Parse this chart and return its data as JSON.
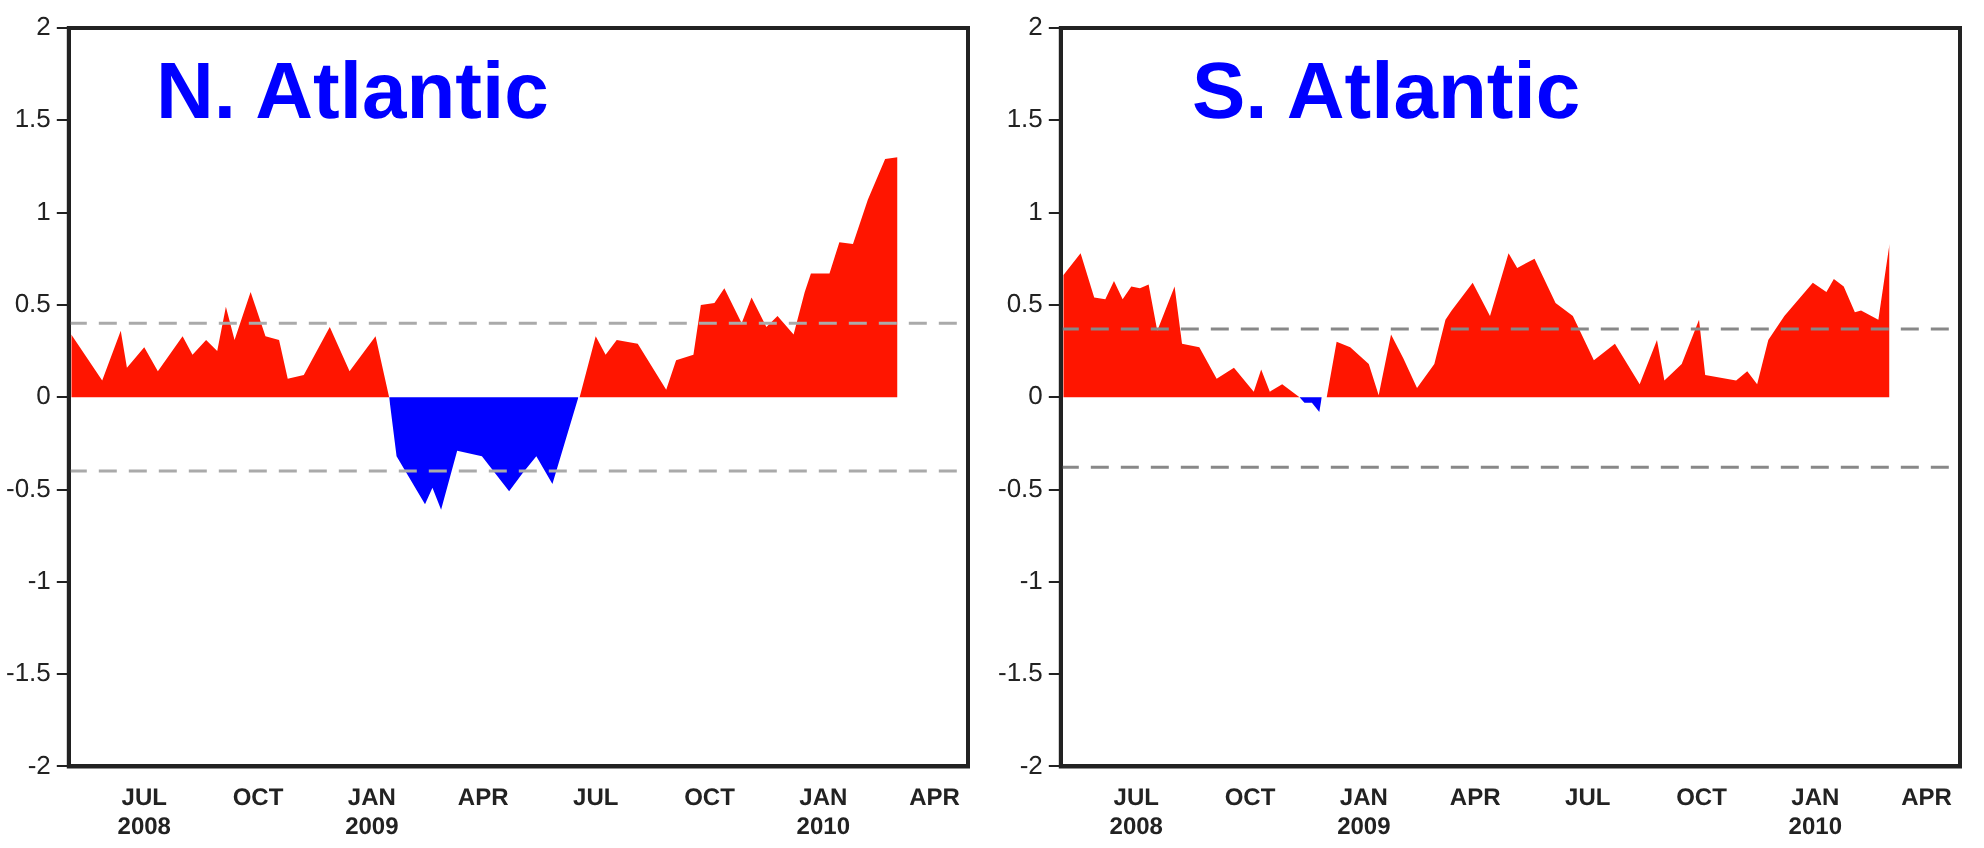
{
  "chart_data": [
    {
      "type": "area",
      "title": "N. Atlantic",
      "xlim": [
        "2008-05-01",
        "2010-04-28"
      ],
      "ylim": [
        -2,
        2
      ],
      "xticks": [
        {
          "value": "2008-07-01",
          "label": "JUL\n2008"
        },
        {
          "value": "2008-10-01",
          "label": "OCT"
        },
        {
          "value": "2009-01-01",
          "label": "JAN\n2009"
        },
        {
          "value": "2009-04-01",
          "label": "APR"
        },
        {
          "value": "2009-07-01",
          "label": "JUL"
        },
        {
          "value": "2009-10-01",
          "label": "OCT"
        },
        {
          "value": "2010-01-01",
          "label": "JAN\n2010"
        },
        {
          "value": "2010-04-01",
          "label": "APR"
        }
      ],
      "yticks": [
        -2,
        -1.5,
        -1,
        -0.5,
        0,
        0.5,
        1,
        1.5,
        2
      ],
      "series": [
        {
          "color": "#ff1500",
          "x": [
            "2008-05-03",
            "2008-05-28",
            "2008-06-12",
            "2008-06-17",
            "2008-07-01",
            "2008-07-12",
            "2008-08-01",
            "2008-08-09",
            "2008-08-20",
            "2008-08-29",
            "2008-09-05",
            "2008-09-12",
            "2008-09-25",
            "2008-10-07",
            "2008-10-18",
            "2008-10-25",
            "2008-11-07",
            "2008-11-28",
            "2008-12-14",
            "2009-01-04",
            "2009-01-15",
            "2009-06-18",
            "2009-07-01",
            "2009-07-09",
            "2009-07-18",
            "2009-08-04",
            "2009-08-27",
            "2009-09-04",
            "2009-09-18",
            "2009-09-24",
            "2009-10-05",
            "2009-10-13",
            "2009-10-27",
            "2009-11-04",
            "2009-11-16",
            "2009-11-25",
            "2009-12-08",
            "2009-12-17",
            "2009-12-22",
            "2010-01-06",
            "2010-01-14",
            "2010-01-25",
            "2010-02-06",
            "2010-02-20",
            "2010-03-02"
          ],
          "values": [
            0.34,
            0.09,
            0.36,
            0.16,
            0.27,
            0.14,
            0.33,
            0.23,
            0.31,
            0.25,
            0.49,
            0.31,
            0.57,
            0.33,
            0.31,
            0.1,
            0.12,
            0.38,
            0.14,
            0.33,
            0,
            0,
            0.33,
            0.23,
            0.31,
            0.29,
            0.04,
            0.2,
            0.23,
            0.5,
            0.51,
            0.59,
            0.4,
            0.54,
            0.38,
            0.44,
            0.34,
            0.57,
            0.67,
            0.67,
            0.84,
            0.83,
            1.07,
            1.29,
            1.3
          ]
        },
        {
          "color": "#0000ff",
          "x": [
            "2009-01-15",
            "2009-01-21",
            "2009-02-13",
            "2009-02-19",
            "2009-02-26",
            "2009-03-11",
            "2009-03-31",
            "2009-04-22",
            "2009-05-03",
            "2009-05-14",
            "2009-05-27",
            "2009-06-17"
          ],
          "values": [
            0,
            -0.32,
            -0.58,
            -0.49,
            -0.61,
            -0.29,
            -0.32,
            -0.51,
            -0.41,
            -0.32,
            -0.47,
            0
          ]
        }
      ],
      "ref_lines": [
        {
          "axis": "y",
          "value": 0.4,
          "color": "#aaaaaa",
          "line_style": "dashed"
        },
        {
          "axis": "y",
          "value": -0.4,
          "color": "#aaaaaa",
          "line_style": "dashed"
        }
      ],
      "grid": false,
      "legend": false
    },
    {
      "type": "area",
      "title": "S. Atlantic",
      "xlim": [
        "2008-05-01",
        "2010-04-28"
      ],
      "ylim": [
        -2,
        2
      ],
      "xticks": [
        {
          "value": "2008-07-01",
          "label": "JUL\n2008"
        },
        {
          "value": "2008-10-01",
          "label": "OCT"
        },
        {
          "value": "2009-01-01",
          "label": "JAN\n2009"
        },
        {
          "value": "2009-04-01",
          "label": "APR"
        },
        {
          "value": "2009-07-01",
          "label": "JUL"
        },
        {
          "value": "2009-10-01",
          "label": "OCT"
        },
        {
          "value": "2010-01-01",
          "label": "JAN\n2010"
        },
        {
          "value": "2010-04-01",
          "label": "APR"
        }
      ],
      "yticks": [
        -2,
        -1.5,
        -1,
        -0.5,
        0,
        0.5,
        1,
        1.5,
        2
      ],
      "series": [
        {
          "color": "#ff1500",
          "x": [
            "2008-05-03",
            "2008-05-17",
            "2008-05-28",
            "2008-06-06",
            "2008-06-13",
            "2008-06-20",
            "2008-06-27",
            "2008-07-04",
            "2008-07-11",
            "2008-07-18",
            "2008-08-01",
            "2008-08-07",
            "2008-08-21",
            "2008-09-04",
            "2008-09-18",
            "2008-10-04",
            "2008-10-10",
            "2008-10-17",
            "2008-10-27",
            "2008-11-10",
            "2008-11-28",
            "2008-12-02",
            "2008-12-10",
            "2008-12-21",
            "2009-01-05",
            "2009-01-13",
            "2009-01-23",
            "2009-02-02",
            "2009-02-13",
            "2009-02-27",
            "2009-03-08",
            "2009-03-13",
            "2009-03-30",
            "2009-04-13",
            "2009-04-28",
            "2009-05-05",
            "2009-05-19",
            "2009-06-05",
            "2009-06-19",
            "2009-07-06",
            "2009-07-23",
            "2009-08-12",
            "2009-08-26",
            "2009-09-01",
            "2009-09-15",
            "2009-09-29",
            "2009-10-04",
            "2009-10-29",
            "2009-11-07",
            "2009-11-15",
            "2009-11-24",
            "2009-12-07",
            "2009-12-30",
            "2010-01-10",
            "2010-01-16",
            "2010-01-24",
            "2010-02-02",
            "2010-02-07",
            "2010-02-21",
            "2010-03-02"
          ],
          "values": [
            0.66,
            0.78,
            0.54,
            0.53,
            0.63,
            0.53,
            0.6,
            0.59,
            0.61,
            0.36,
            0.6,
            0.29,
            0.27,
            0.1,
            0.16,
            0.03,
            0.15,
            0.03,
            0.07,
            0,
            0,
            0,
            0.3,
            0.27,
            0.18,
            0.01,
            0.34,
            0.21,
            0.05,
            0.18,
            0.42,
            0.47,
            0.62,
            0.44,
            0.78,
            0.7,
            0.75,
            0.51,
            0.44,
            0.2,
            0.29,
            0.07,
            0.31,
            0.09,
            0.18,
            0.42,
            0.12,
            0.09,
            0.14,
            0.07,
            0.31,
            0.44,
            0.62,
            0.57,
            0.64,
            0.6,
            0.46,
            0.47,
            0.42,
            0.83
          ]
        },
        {
          "color": "#0000ff",
          "x": [
            "2008-11-10",
            "2008-11-14",
            "2008-11-20",
            "2008-11-26",
            "2008-11-28"
          ],
          "values": [
            0,
            -0.03,
            -0.03,
            -0.08,
            0
          ]
        }
      ],
      "ref_lines": [
        {
          "axis": "y",
          "value": 0.37,
          "color": "#888888",
          "line_style": "dashed"
        },
        {
          "axis": "y",
          "value": -0.38,
          "color": "#888888",
          "line_style": "dashed"
        }
      ],
      "grid": false,
      "legend": false
    }
  ]
}
